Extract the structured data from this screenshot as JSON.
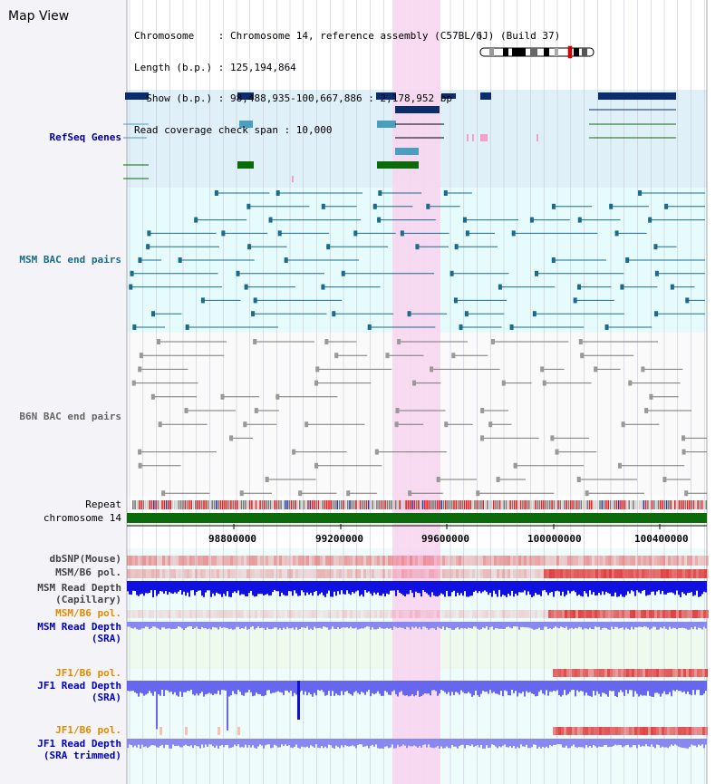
{
  "title": "Map View",
  "info": {
    "line1": "Chromosome    : Chromosome 14, reference assembly (C57BL/6J) (Build 37)",
    "line2": "Length (b.p.) : 125,194,864",
    "line3": "  Show (b.p.) : 98,488,935-100,667,886 : 2,178,952 bp",
    "line4": "Read coverage check span : 10,000"
  },
  "tracks": {
    "refseq": "RefSeq Genes",
    "msm_bac": "MSM BAC end pairs",
    "b6n_bac": "B6N BAC end pairs",
    "repeat": "Repeat",
    "chromosome": "chromosome 14",
    "dbsnp": "dbSNP(Mouse)",
    "msm_b6_pol_1": "MSM/B6 pol.",
    "msm_depth_cap_1": "MSM Read Depth",
    "msm_depth_cap_2": "(Capillary)",
    "msm_b6_pol_2": "MSM/B6 pol.",
    "msm_depth_sra_1": "MSM Read Depth",
    "msm_depth_sra_2": "(SRA)",
    "jf1_b6_pol_1": "JF1/B6 pol.",
    "jf1_depth_sra_1": "JF1 Read Depth",
    "jf1_depth_sra_2": "(SRA)",
    "jf1_b6_pol_2": "JF1/B6 pol.",
    "jf1_depth_trim_1": "JF1 Read Depth",
    "jf1_depth_trim_2": "(SRA trimmed)"
  },
  "axis_ticks": [
    "98800000",
    "99200000",
    "99600000",
    "100000000",
    "100400000"
  ],
  "colors": {
    "highlight": "#f7d6f0",
    "refseq_bg": "#dff0f8",
    "bac_bg": "#e6fbfb",
    "gene_navy": "#0c2d6b",
    "gene_blue": "#4a9ec0",
    "gene_green": "#0b6b0b",
    "gene_pink": "#f5a0c8",
    "chromosome_bar": "#0b6b0b",
    "msm_pair": "#1c6b8a",
    "b6n_pair": "#777777",
    "depth_dark": "#1010e0",
    "depth_light": "#8888f0",
    "snp_red": "#e03030"
  }
}
